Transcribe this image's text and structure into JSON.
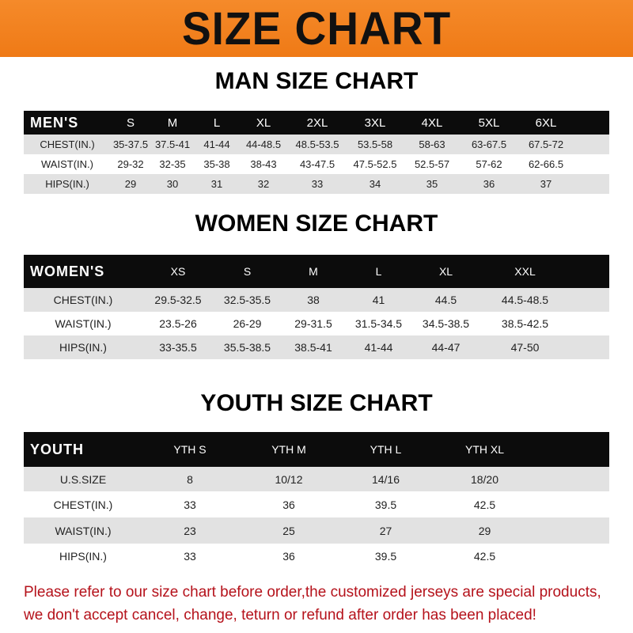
{
  "banner": "SIZE CHART",
  "men": {
    "title": "MAN SIZE CHART",
    "header": [
      "MEN'S",
      "S",
      "M",
      "L",
      "XL",
      "2XL",
      "3XL",
      "4XL",
      "5XL",
      "6XL"
    ],
    "rows": [
      [
        "CHEST(IN.)",
        "35-37.5",
        "37.5-41",
        "41-44",
        "44-48.5",
        "48.5-53.5",
        "53.5-58",
        "58-63",
        "63-67.5",
        "67.5-72"
      ],
      [
        "WAIST(IN.)",
        "29-32",
        "32-35",
        "35-38",
        "38-43",
        "43-47.5",
        "47.5-52.5",
        "52.5-57",
        "57-62",
        "62-66.5"
      ],
      [
        "HIPS(IN.)",
        "29",
        "30",
        "31",
        "32",
        "33",
        "34",
        "35",
        "36",
        "37"
      ]
    ]
  },
  "women": {
    "title": "WOMEN SIZE CHART",
    "header": [
      "WOMEN'S",
      "XS",
      "S",
      "M",
      "L",
      "XL",
      "XXL"
    ],
    "rows": [
      [
        "CHEST(IN.)",
        "29.5-32.5",
        "32.5-35.5",
        "38",
        "41",
        "44.5",
        "44.5-48.5"
      ],
      [
        "WAIST(IN.)",
        "23.5-26",
        "26-29",
        "29-31.5",
        "31.5-34.5",
        "34.5-38.5",
        "38.5-42.5"
      ],
      [
        "HIPS(IN.)",
        "33-35.5",
        "35.5-38.5",
        "38.5-41",
        "41-44",
        "44-47",
        "47-50"
      ]
    ]
  },
  "youth": {
    "title": "YOUTH SIZE CHART",
    "header": [
      "YOUTH",
      "YTH S",
      "YTH M",
      "YTH L",
      "YTH XL"
    ],
    "rows": [
      [
        "U.S.SIZE",
        "8",
        "10/12",
        "14/16",
        "18/20"
      ],
      [
        "CHEST(IN.)",
        "33",
        "36",
        "39.5",
        "42.5"
      ],
      [
        "WAIST(IN.)",
        "23",
        "25",
        "27",
        "29"
      ],
      [
        "HIPS(IN.)",
        "33",
        "36",
        "39.5",
        "42.5"
      ]
    ]
  },
  "notice": [
    "Please refer to our size chart before order,the customized jerseys are special products,",
    "we don't accept cancel, change, teturn or refund after order has been placed!"
  ],
  "colors": {
    "banner": "#f07f1e",
    "header": "#0c0c0c",
    "notice": "#b5121b"
  }
}
